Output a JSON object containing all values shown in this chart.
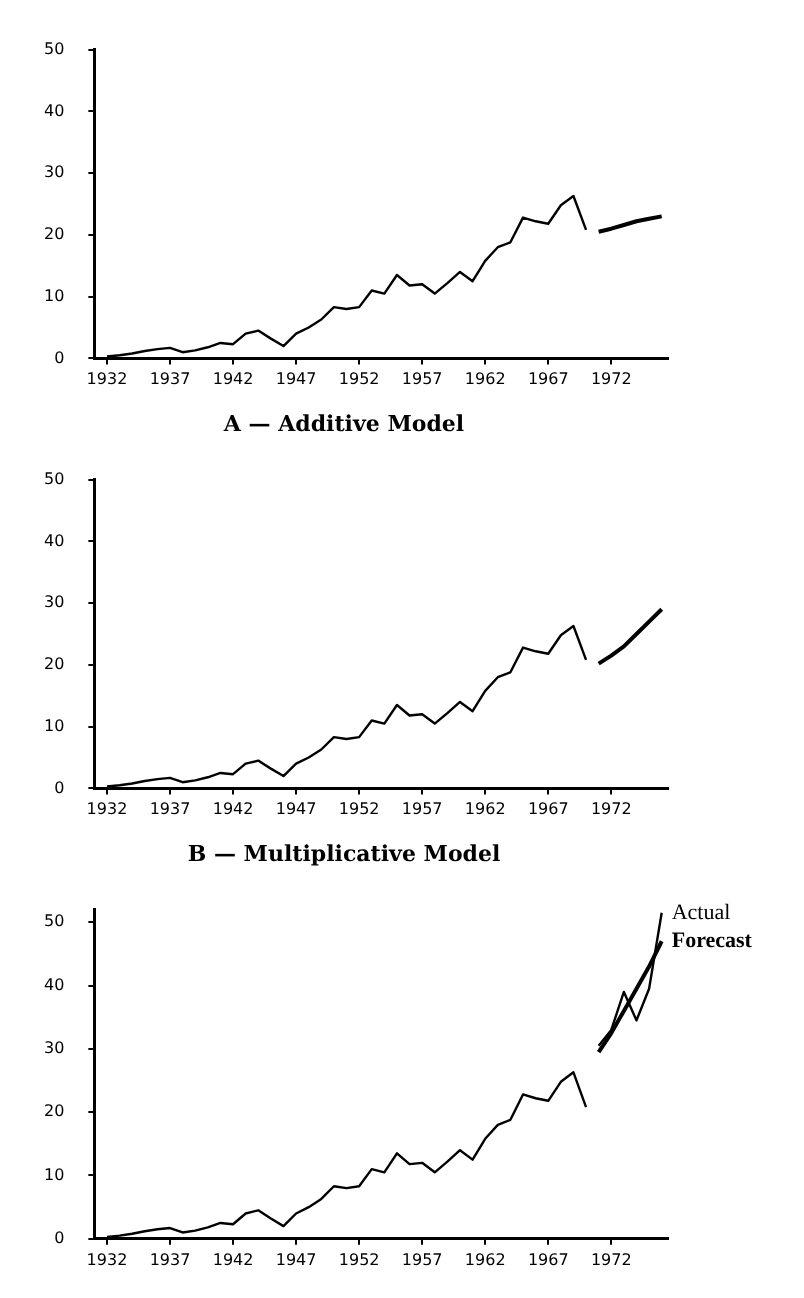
{
  "chart_data": [
    {
      "type": "line",
      "title": "A — Additive Model",
      "xlim": [
        1931,
        1976.5
      ],
      "xticks": [
        1932,
        1937,
        1942,
        1947,
        1952,
        1957,
        1962,
        1967,
        1972
      ],
      "ylim": [
        0,
        50
      ],
      "yticks": [
        0,
        10,
        20,
        30,
        40,
        50
      ],
      "series": [
        {
          "color": "#000000",
          "x": [
            1932,
            1933,
            1934,
            1935,
            1936,
            1937,
            1938,
            1939,
            1940,
            1941,
            1942,
            1943,
            1944,
            1945,
            1946,
            1947,
            1948,
            1949,
            1950,
            1951,
            1952,
            1953,
            1954,
            1955,
            1956,
            1957,
            1958,
            1959,
            1960,
            1961,
            1962,
            1963,
            1964,
            1965,
            1966,
            1967,
            1968,
            1969,
            1970
          ],
          "values": [
            0.3,
            0.5,
            0.8,
            1.2,
            1.5,
            1.7,
            1.0,
            1.3,
            1.8,
            2.5,
            2.3,
            4.0,
            4.5,
            3.2,
            2.0,
            4.0,
            5.0,
            6.3,
            8.3,
            8.0,
            8.3,
            11.0,
            10.5,
            13.5,
            11.8,
            12.0,
            10.5,
            12.2,
            14.0,
            12.5,
            15.8,
            18.0,
            18.8,
            22.8,
            22.2,
            21.8,
            24.8,
            26.3,
            20.8
          ]
        },
        {
          "color": "#000000",
          "x": [
            1971,
            1972,
            1973,
            1974,
            1975,
            1976
          ],
          "values": [
            20.5,
            21.0,
            21.6,
            22.2,
            22.6,
            23.0
          ]
        }
      ]
    },
    {
      "type": "line",
      "title": "B — Multiplicative Model",
      "xlim": [
        1931,
        1976.5
      ],
      "xticks": [
        1932,
        1937,
        1942,
        1947,
        1952,
        1957,
        1962,
        1967,
        1972
      ],
      "ylim": [
        0,
        50
      ],
      "yticks": [
        0,
        10,
        20,
        30,
        40,
        50
      ],
      "series": [
        {
          "color": "#000000",
          "x": [
            1932,
            1933,
            1934,
            1935,
            1936,
            1937,
            1938,
            1939,
            1940,
            1941,
            1942,
            1943,
            1944,
            1945,
            1946,
            1947,
            1948,
            1949,
            1950,
            1951,
            1952,
            1953,
            1954,
            1955,
            1956,
            1957,
            1958,
            1959,
            1960,
            1961,
            1962,
            1963,
            1964,
            1965,
            1966,
            1967,
            1968,
            1969,
            1970
          ],
          "values": [
            0.3,
            0.5,
            0.8,
            1.2,
            1.5,
            1.7,
            1.0,
            1.3,
            1.8,
            2.5,
            2.3,
            4.0,
            4.5,
            3.2,
            2.0,
            4.0,
            5.0,
            6.3,
            8.3,
            8.0,
            8.3,
            11.0,
            10.5,
            13.5,
            11.8,
            12.0,
            10.5,
            12.2,
            14.0,
            12.5,
            15.8,
            18.0,
            18.8,
            22.8,
            22.2,
            21.8,
            24.8,
            26.3,
            20.8
          ]
        },
        {
          "color": "#000000",
          "x": [
            1971,
            1972,
            1973,
            1974,
            1975,
            1976
          ],
          "values": [
            20.2,
            21.5,
            23.0,
            25.0,
            27.0,
            29.0
          ]
        }
      ]
    },
    {
      "type": "line",
      "xlim": [
        1931,
        1976.5
      ],
      "xticks": [
        1932,
        1937,
        1942,
        1947,
        1952,
        1957,
        1962,
        1967,
        1972
      ],
      "ylim": [
        0,
        52
      ],
      "yticks": [
        0,
        10,
        20,
        30,
        40,
        50
      ],
      "series": [
        {
          "color": "#000000",
          "x": [
            1932,
            1933,
            1934,
            1935,
            1936,
            1937,
            1938,
            1939,
            1940,
            1941,
            1942,
            1943,
            1944,
            1945,
            1946,
            1947,
            1948,
            1949,
            1950,
            1951,
            1952,
            1953,
            1954,
            1955,
            1956,
            1957,
            1958,
            1959,
            1960,
            1961,
            1962,
            1963,
            1964,
            1965,
            1966,
            1967,
            1968,
            1969,
            1970
          ],
          "values": [
            0.3,
            0.5,
            0.8,
            1.2,
            1.5,
            1.7,
            1.0,
            1.3,
            1.8,
            2.5,
            2.3,
            4.0,
            4.5,
            3.2,
            2.0,
            4.0,
            5.0,
            6.3,
            8.3,
            8.0,
            8.3,
            11.0,
            10.5,
            13.5,
            11.8,
            12.0,
            10.5,
            12.2,
            14.0,
            12.5,
            15.8,
            18.0,
            18.8,
            22.8,
            22.2,
            21.8,
            24.8,
            26.3,
            20.8
          ]
        },
        {
          "name": "Actual",
          "color": "#000000",
          "x": [
            1971,
            1972,
            1973,
            1974,
            1975,
            1976
          ],
          "values": [
            30.5,
            33.0,
            39.0,
            34.5,
            39.5,
            51.5
          ]
        },
        {
          "name": "Forecast",
          "color": "#000000",
          "x": [
            1971,
            1972,
            1973,
            1974,
            1975,
            1976
          ],
          "values": [
            29.5,
            32.5,
            36.0,
            39.5,
            43.0,
            47.0
          ]
        }
      ]
    }
  ]
}
